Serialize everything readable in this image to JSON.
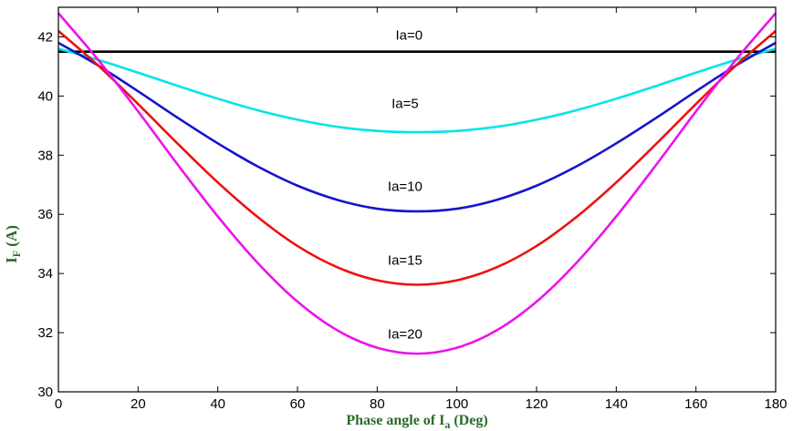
{
  "chart_data": {
    "type": "line",
    "title": "",
    "xlabel": {
      "main": "Phase angle of I",
      "sub": "a",
      "suffix": " (Deg)"
    },
    "ylabel": {
      "main": "I",
      "sub": "F",
      "suffix": " (A)"
    },
    "xlim": [
      0,
      180
    ],
    "ylim": [
      30,
      43
    ],
    "xticks": [
      0,
      20,
      40,
      60,
      80,
      100,
      120,
      140,
      160,
      180
    ],
    "yticks": [
      30,
      32,
      34,
      36,
      38,
      40,
      42
    ],
    "grid": false,
    "x": [
      0,
      10,
      20,
      30,
      40,
      50,
      60,
      70,
      80,
      90,
      100,
      110,
      120,
      130,
      140,
      150,
      160,
      170,
      180
    ],
    "series": [
      {
        "name": "Ia=0",
        "color": "#000000",
        "label_at": [
          88,
          41.9
        ],
        "values": [
          41.5,
          41.5,
          41.5,
          41.5,
          41.5,
          41.5,
          41.5,
          41.5,
          41.5,
          41.5,
          41.5,
          41.5,
          41.5,
          41.5,
          41.5,
          41.5,
          41.5,
          41.5,
          41.5
        ]
      },
      {
        "name": "Ia=5",
        "color": "#00e5e5",
        "label_at": [
          87,
          39.6
        ],
        "values": [
          41.6,
          41.22,
          40.79,
          40.34,
          39.91,
          39.52,
          39.2,
          38.96,
          38.82,
          38.78,
          38.82,
          38.96,
          39.2,
          39.52,
          39.91,
          40.34,
          40.79,
          41.22,
          41.6
        ]
      },
      {
        "name": "Ia=10",
        "color": "#1414cc",
        "label_at": [
          87,
          36.8
        ],
        "values": [
          41.8,
          41.03,
          40.16,
          39.26,
          38.4,
          37.62,
          36.97,
          36.49,
          36.19,
          36.1,
          36.19,
          36.49,
          36.97,
          37.62,
          38.4,
          39.26,
          40.16,
          41.03,
          41.8
        ]
      },
      {
        "name": "Ia=15",
        "color": "#ee1111",
        "label_at": [
          87,
          34.3
        ],
        "values": [
          42.2,
          41.03,
          39.73,
          38.38,
          37.08,
          35.91,
          34.93,
          34.21,
          33.77,
          33.62,
          33.77,
          34.21,
          34.93,
          35.91,
          37.08,
          38.38,
          39.73,
          41.03,
          42.2
        ]
      },
      {
        "name": "Ia=20",
        "color": "#ee11ee",
        "label_at": [
          87,
          31.8
        ],
        "values": [
          42.8,
          41.22,
          39.48,
          37.67,
          35.93,
          34.36,
          33.05,
          32.08,
          31.49,
          31.29,
          31.49,
          32.08,
          33.05,
          34.36,
          35.93,
          37.67,
          39.48,
          41.22,
          42.8
        ]
      }
    ]
  }
}
